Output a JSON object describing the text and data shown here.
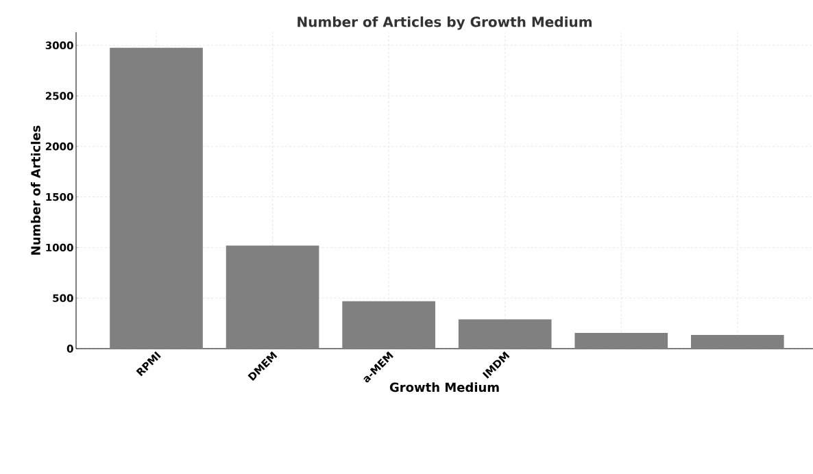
{
  "chart_data": {
    "type": "bar",
    "title": "Number of Articles by Growth Medium",
    "xlabel": "Growth Medium",
    "ylabel": "Number of Articles",
    "categories": [
      "RPMI",
      "DMEM",
      "a-MEM",
      "IMDM",
      null,
      null
    ],
    "values": [
      2975,
      1020,
      470,
      290,
      155,
      135
    ],
    "color": "#808080",
    "ylim": [
      0,
      3130
    ],
    "yticks": [
      0,
      500,
      1000,
      1500,
      2000,
      2500,
      3000
    ],
    "grid": true
  }
}
